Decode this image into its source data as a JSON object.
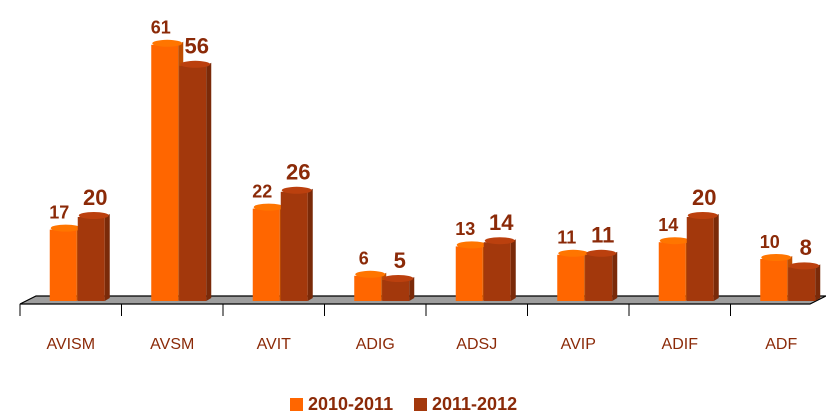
{
  "chart_data": {
    "type": "bar3d",
    "categories": [
      "AVISM",
      "AVSM",
      "AVIT",
      "ADIG",
      "ADSJ",
      "AVIP",
      "ADIF",
      "ADF"
    ],
    "series": [
      {
        "name": "2010-2011",
        "color": "#ff6600",
        "values": [
          17,
          61,
          22,
          6,
          13,
          11,
          14,
          10
        ]
      },
      {
        "name": "2011-2012",
        "color": "#a3380c",
        "values": [
          20,
          56,
          26,
          5,
          14,
          11,
          20,
          8
        ]
      }
    ],
    "legend": "bottom"
  }
}
